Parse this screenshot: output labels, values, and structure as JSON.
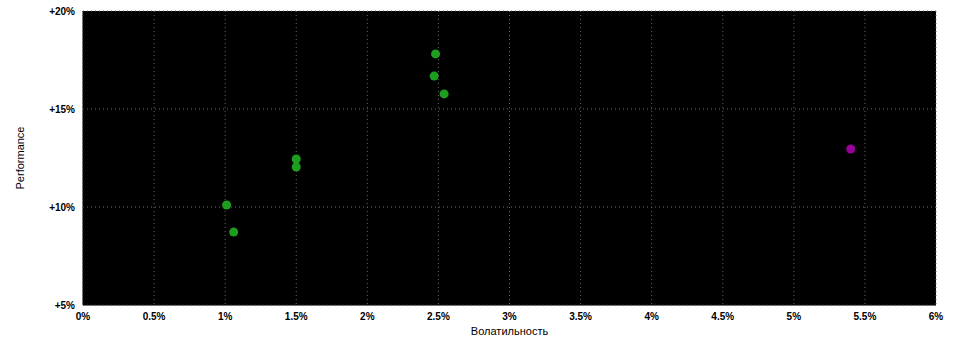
{
  "chart_data": {
    "type": "scatter",
    "x_label": "Волатильность",
    "y_label": "Performance",
    "xlim": [
      0,
      6
    ],
    "ylim": [
      5,
      20
    ],
    "xticks": [
      {
        "value": 0,
        "label": "0%"
      },
      {
        "value": 0.5,
        "label": "0.5%"
      },
      {
        "value": 1,
        "label": "1%"
      },
      {
        "value": 1.5,
        "label": "1.5%"
      },
      {
        "value": 2,
        "label": "2%"
      },
      {
        "value": 2.5,
        "label": "2.5%"
      },
      {
        "value": 3,
        "label": "3%"
      },
      {
        "value": 3.5,
        "label": "3.5%"
      },
      {
        "value": 4,
        "label": "4%"
      },
      {
        "value": 4.5,
        "label": "4.5%"
      },
      {
        "value": 5,
        "label": "5%"
      },
      {
        "value": 5.5,
        "label": "5.5%"
      },
      {
        "value": 6,
        "label": "6%"
      }
    ],
    "yticks": [
      {
        "value": 5,
        "label": "+5%"
      },
      {
        "value": 10,
        "label": "+10%"
      },
      {
        "value": 15,
        "label": "+15%"
      },
      {
        "value": 20,
        "label": "+20%"
      }
    ],
    "grid": true,
    "series": [
      {
        "color": "#1e9e1e",
        "marker": "circle",
        "x": [
          1.01,
          1.06,
          1.5,
          1.5,
          2.48,
          2.47,
          2.54
        ],
        "values": [
          10.1,
          8.72,
          12.45,
          12.04,
          17.81,
          16.68,
          15.77
        ]
      },
      {
        "color": "#990099",
        "marker": "circle",
        "x": [
          5.4
        ],
        "values": [
          12.96
        ]
      }
    ]
  }
}
